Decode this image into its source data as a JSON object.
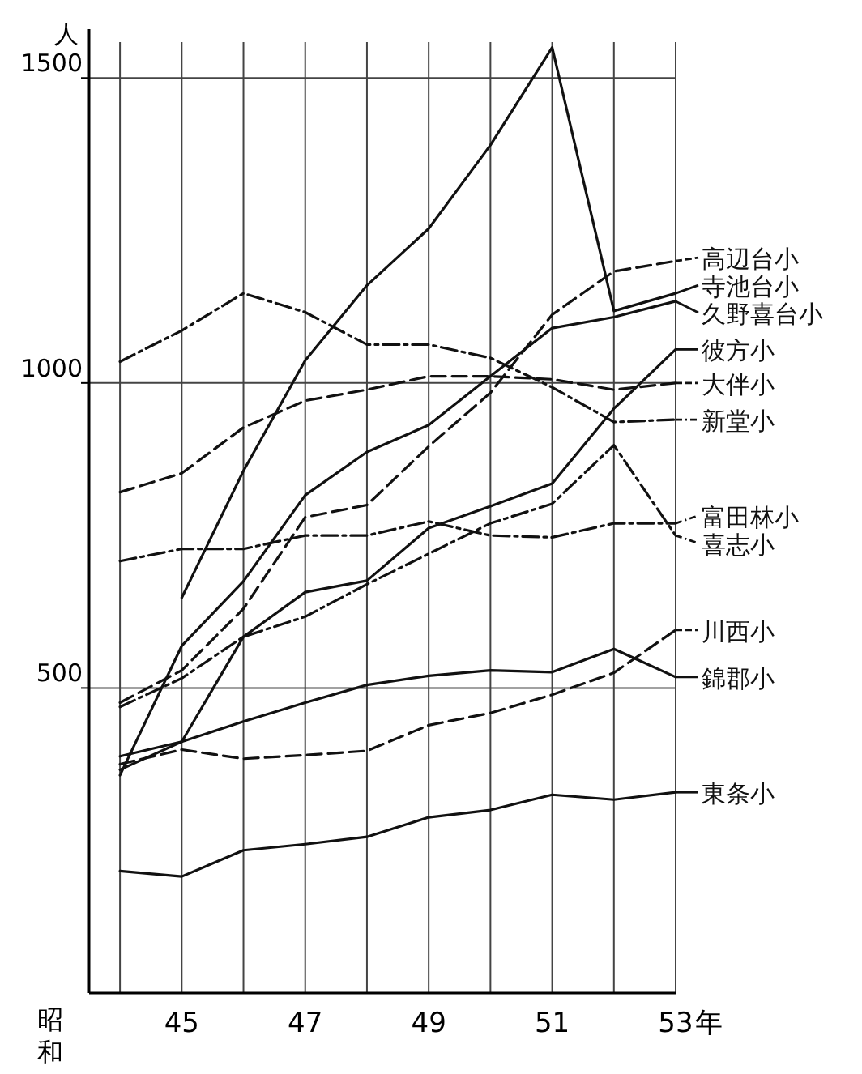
{
  "chart_data": {
    "type": "line",
    "ylabel": "人",
    "xlabel": "年",
    "annotations": [
      "昭和"
    ],
    "x": [
      44,
      45,
      46,
      47,
      48,
      49,
      50,
      51,
      52,
      53
    ],
    "xlim": [
      43.5,
      53
    ],
    "xticks": [
      {
        "value": 44,
        "label": null
      },
      45,
      {
        "value": 46,
        "label": null
      },
      47,
      {
        "value": 48,
        "label": null
      },
      49,
      {
        "value": 50,
        "label": null
      },
      51,
      {
        "value": 52,
        "label": null
      },
      53
    ],
    "ylim": [
      0,
      1580
    ],
    "yticks": [
      500,
      1000,
      1500
    ],
    "grid": true,
    "legend": "right",
    "marker": "none",
    "series": [
      {
        "name": "高辺台小",
        "color": "#111111",
        "line_style": "dashed",
        "values": [
          476,
          529,
          630,
          780,
          800,
          896,
          984,
          1112,
          1183,
          1200
        ]
      },
      {
        "name": "寺池台小",
        "color": "#111111",
        "line_style": "solid",
        "values": [
          null,
          648,
          856,
          1037,
          1160,
          1253,
          1390,
          1550,
          1118,
          1147
        ]
      },
      {
        "name": "久野喜台小",
        "color": "#111111",
        "line_style": "solid",
        "values": [
          357,
          569,
          675,
          816,
          887,
          931,
          1011,
          1090,
          1108,
          1134
        ]
      },
      {
        "name": "彼方小",
        "color": "#111111",
        "line_style": "solid",
        "values": [
          366,
          412,
          584,
          657,
          676,
          762,
          798,
          835,
          958,
          1055
        ]
      },
      {
        "name": "大伴小",
        "color": "#111111",
        "line_style": "dashed",
        "values": [
          821,
          852,
          927,
          971,
          989,
          1011,
          1011,
          1006,
          989,
          1000
        ]
      },
      {
        "name": "新堂小",
        "color": "#111111",
        "line_style": "dotted",
        "values": [
          1035,
          1086,
          1147,
          1116,
          1063,
          1063,
          1041,
          993,
          936,
          940
        ]
      },
      {
        "name": "富田林小",
        "color": "#111111",
        "line_style": "dotted",
        "values": [
          708,
          728,
          728,
          750,
          750,
          773,
          750,
          747,
          770,
          770
        ]
      },
      {
        "name": "喜志小",
        "color": "#111111",
        "line_style": "dotted",
        "values": [
          469,
          516,
          584,
          617,
          670,
          720,
          770,
          802,
          898,
          750
        ]
      },
      {
        "name": "川西小",
        "color": "#111111",
        "line_style": "dashed",
        "values": [
          375,
          399,
          384,
          390,
          397,
          439,
          459,
          489,
          525,
          595
        ]
      },
      {
        "name": "錦郡小",
        "color": "#111111",
        "line_style": "solid",
        "values": [
          388,
          412,
          445,
          476,
          505,
          520,
          529,
          526,
          564,
          518
        ]
      },
      {
        "name": "東条小",
        "color": "#111111",
        "line_style": "solid",
        "values": [
          200,
          191,
          234,
          244,
          256,
          288,
          300,
          325,
          317,
          329
        ]
      }
    ]
  }
}
